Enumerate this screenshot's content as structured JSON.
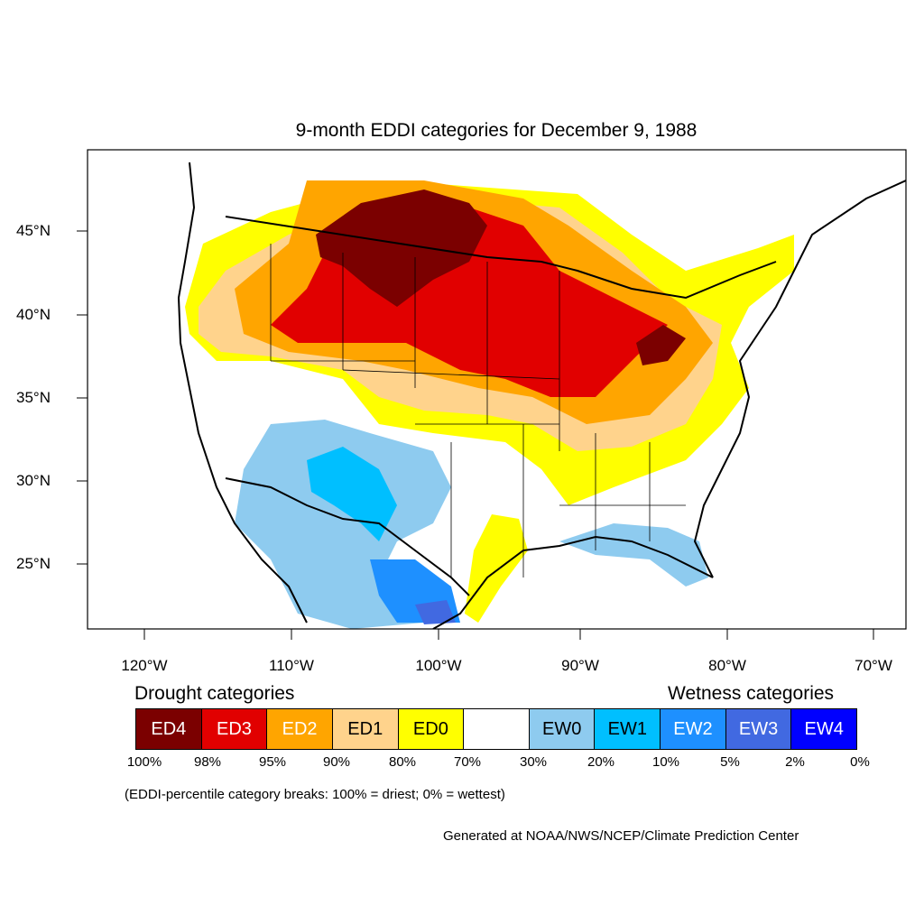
{
  "title": "9-month EDDI categories for December 9, 1988",
  "lat_ticks": [
    "45°N",
    "40°N",
    "35°N",
    "30°N",
    "25°N"
  ],
  "lon_ticks": [
    "120°W",
    "110°W",
    "100°W",
    "90°W",
    "80°W",
    "70°W"
  ],
  "drought_label": "Drought categories",
  "wetness_label": "Wetness categories",
  "legend": [
    {
      "label": "ED4",
      "color": "#7b0000",
      "text_color": "#ffffff"
    },
    {
      "label": "ED3",
      "color": "#e10000",
      "text_color": "#ffffff"
    },
    {
      "label": "ED2",
      "color": "#ffa500",
      "text_color": "#ffffff"
    },
    {
      "label": "ED1",
      "color": "#ffd38c",
      "text_color": "#000000"
    },
    {
      "label": "ED0",
      "color": "#ffff00",
      "text_color": "#000000"
    },
    {
      "label": "",
      "color": "#ffffff",
      "text_color": "#000000"
    },
    {
      "label": "EW0",
      "color": "#8ecbef",
      "text_color": "#000000"
    },
    {
      "label": "EW1",
      "color": "#00bfff",
      "text_color": "#000000"
    },
    {
      "label": "EW2",
      "color": "#1e90ff",
      "text_color": "#ffffff"
    },
    {
      "label": "EW3",
      "color": "#4169e1",
      "text_color": "#ffffff"
    },
    {
      "label": "EW4",
      "color": "#0000ff",
      "text_color": "#ffffff"
    }
  ],
  "breaks": [
    "100%",
    "98%",
    "95%",
    "90%",
    "80%",
    "70%",
    "30%",
    "20%",
    "10%",
    "5%",
    "2%",
    "0%"
  ],
  "note": "(EDDI-percentile category breaks: 100% = driest; 0% = wettest)",
  "credit": "Generated at NOAA/NWS/NCEP/Climate Prediction Center"
}
